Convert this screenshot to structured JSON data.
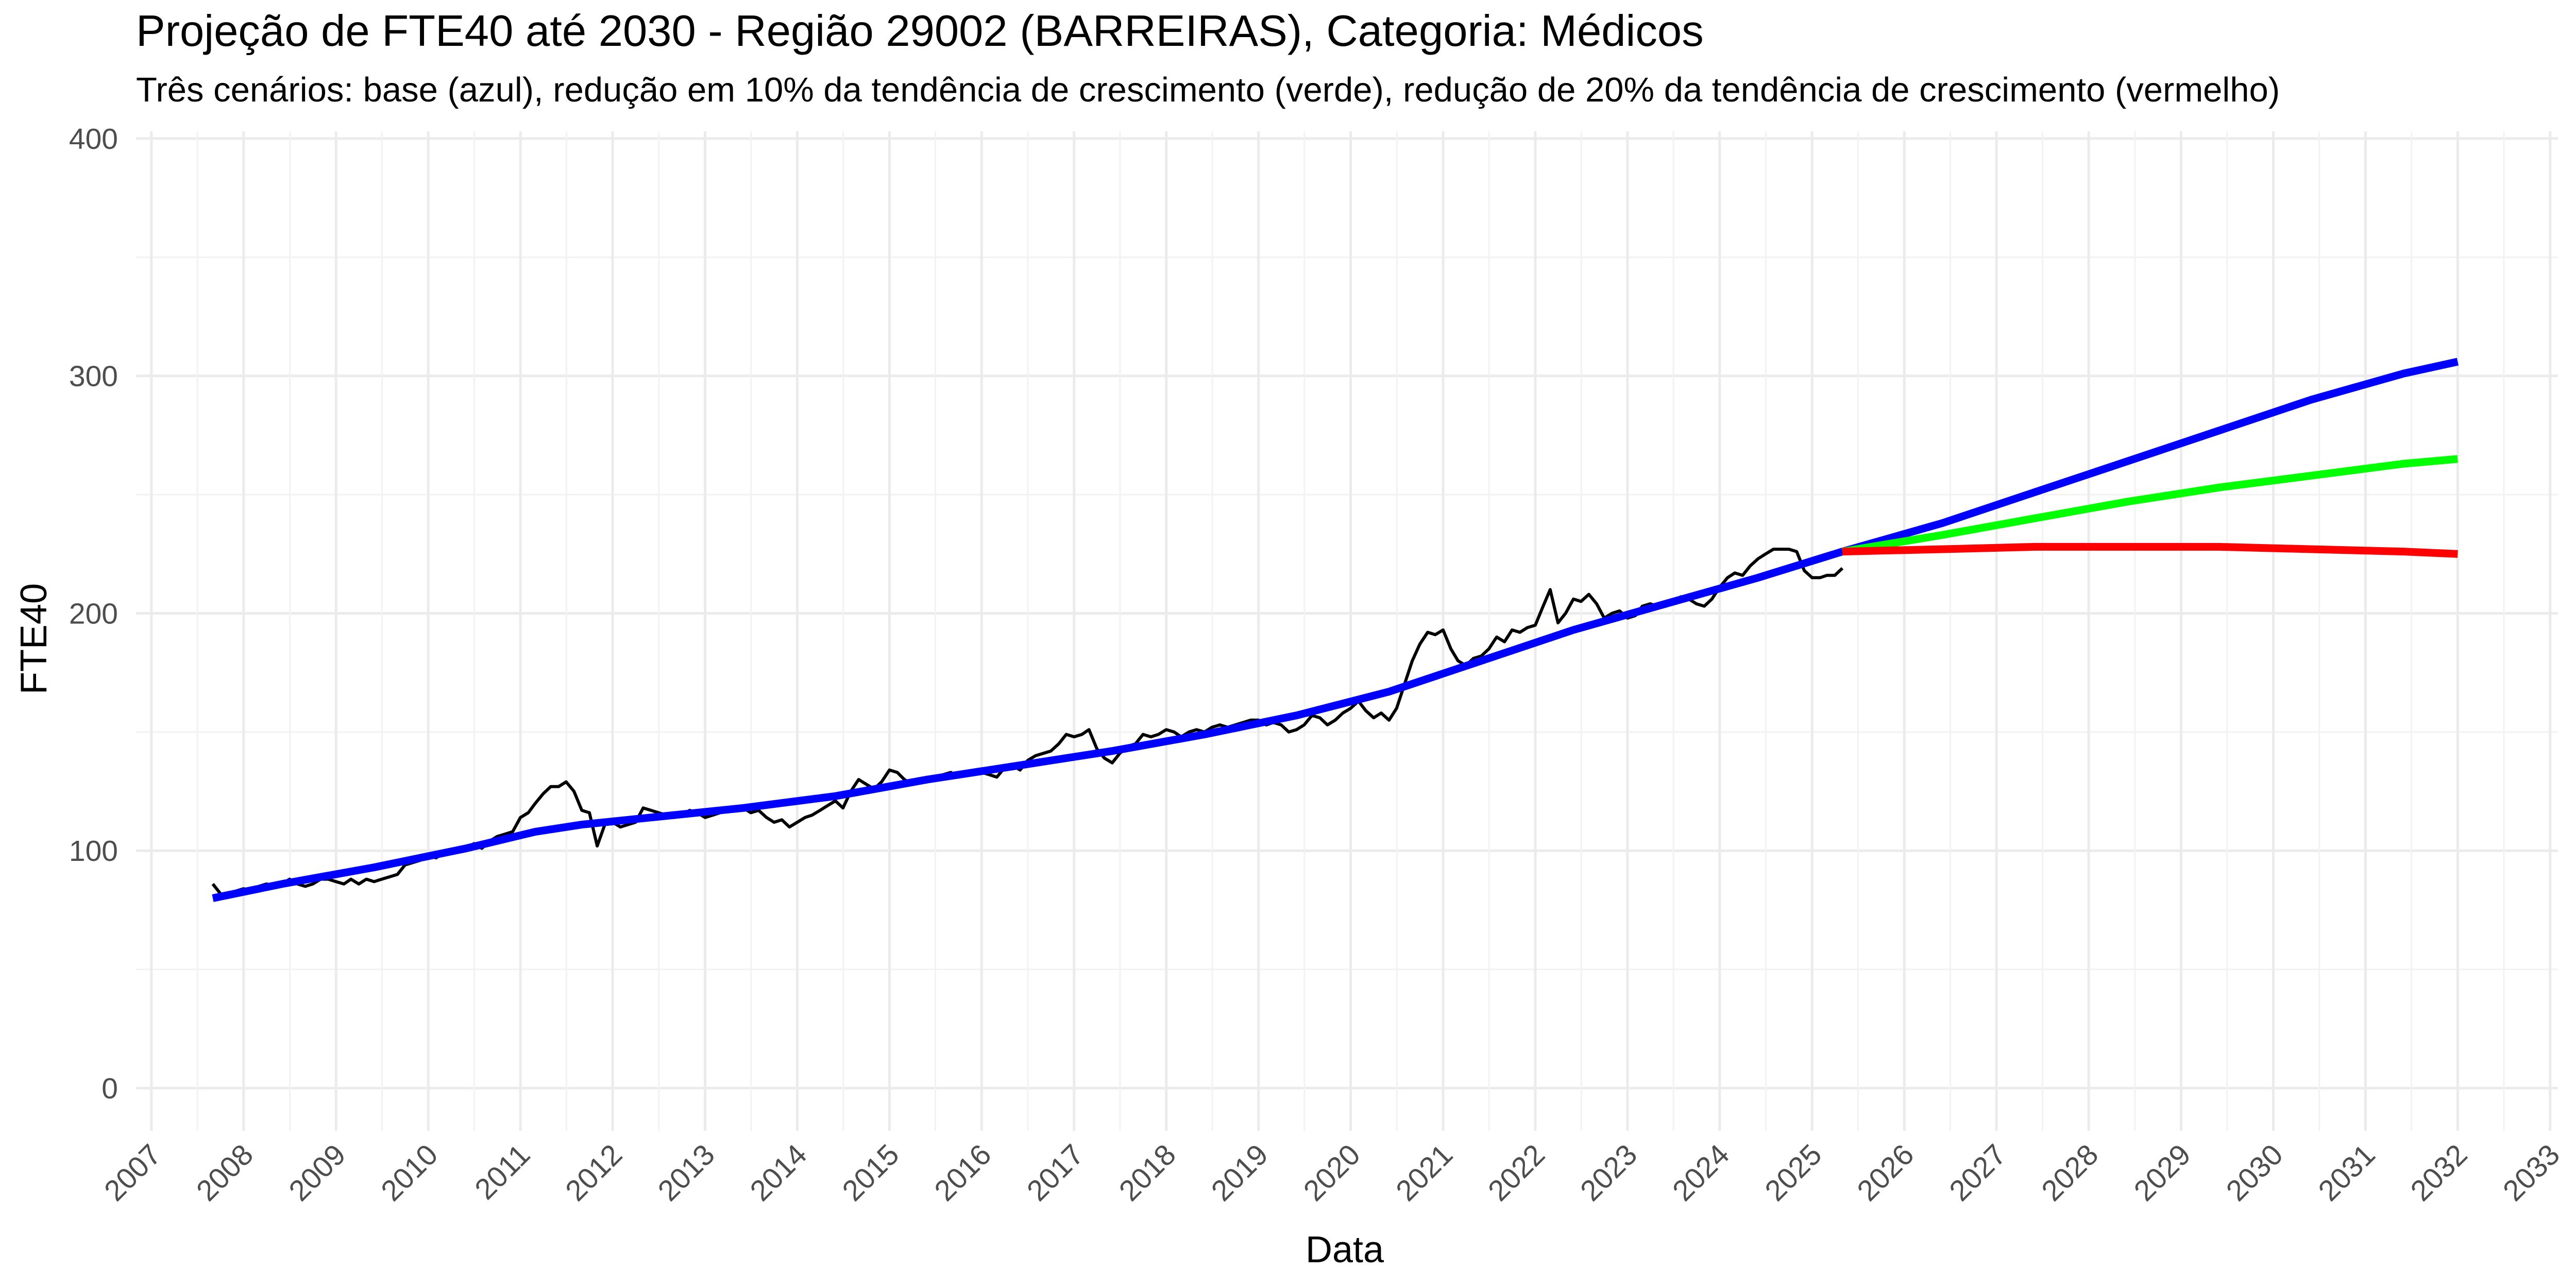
{
  "chart_data": {
    "type": "line",
    "title": "Projeção de FTE40 até 2030 - Região 29002 (BARREIRAS), Categoria: Médicos",
    "subtitle": "Três cenários: base (azul), redução em 10% da tendência de crescimento (verde), redução de 20% da tendência de crescimento (vermelho)",
    "xlabel": "Data",
    "ylabel": "FTE40",
    "x_axis_type": "date",
    "xlim": [
      "2006-11-01",
      "2033-02-01"
    ],
    "ylim": [
      -18,
      403
    ],
    "y_ticks": [
      0,
      100,
      200,
      300,
      400
    ],
    "x_tick_labels": [
      "2007",
      "2008",
      "2009",
      "2010",
      "2011",
      "2012",
      "2013",
      "2014",
      "2015",
      "2016",
      "2017",
      "2018",
      "2019",
      "2020",
      "2021",
      "2022",
      "2023",
      "2024",
      "2025",
      "2026",
      "2027",
      "2028",
      "2029",
      "2030",
      "2031",
      "2032",
      "2033"
    ],
    "grid": true,
    "legend": "none",
    "series": [
      {
        "color": "#000000",
        "width": "thin",
        "points": [
          [
            "2007-09-01",
            86
          ],
          [
            "2007-10-01",
            82
          ],
          [
            "2007-11-01",
            81
          ],
          [
            "2007-12-01",
            83
          ],
          [
            "2008-01-01",
            84
          ],
          [
            "2008-02-01",
            83
          ],
          [
            "2008-03-01",
            85
          ],
          [
            "2008-04-01",
            86
          ],
          [
            "2008-05-01",
            85
          ],
          [
            "2008-06-01",
            86
          ],
          [
            "2008-07-01",
            88
          ],
          [
            "2008-08-01",
            86
          ],
          [
            "2008-09-01",
            85
          ],
          [
            "2008-10-01",
            86
          ],
          [
            "2008-11-01",
            88
          ],
          [
            "2008-12-01",
            88
          ],
          [
            "2009-01-01",
            87
          ],
          [
            "2009-02-01",
            86
          ],
          [
            "2009-03-01",
            88
          ],
          [
            "2009-04-01",
            86
          ],
          [
            "2009-05-01",
            88
          ],
          [
            "2009-06-01",
            87
          ],
          [
            "2009-07-01",
            88
          ],
          [
            "2009-08-01",
            89
          ],
          [
            "2009-09-01",
            90
          ],
          [
            "2009-10-01",
            94
          ],
          [
            "2009-11-01",
            95
          ],
          [
            "2009-12-01",
            96
          ],
          [
            "2010-01-01",
            98
          ],
          [
            "2010-02-01",
            97
          ],
          [
            "2010-03-01",
            99
          ],
          [
            "2010-04-01",
            100
          ],
          [
            "2010-05-01",
            100
          ],
          [
            "2010-06-01",
            101
          ],
          [
            "2010-07-01",
            103
          ],
          [
            "2010-08-01",
            101
          ],
          [
            "2010-09-01",
            104
          ],
          [
            "2010-10-01",
            106
          ],
          [
            "2010-11-01",
            107
          ],
          [
            "2010-12-01",
            108
          ],
          [
            "2011-01-01",
            114
          ],
          [
            "2011-02-01",
            116
          ],
          [
            "2011-03-01",
            120
          ],
          [
            "2011-04-01",
            124
          ],
          [
            "2011-05-01",
            127
          ],
          [
            "2011-06-01",
            127
          ],
          [
            "2011-07-01",
            129
          ],
          [
            "2011-08-01",
            125
          ],
          [
            "2011-09-01",
            117
          ],
          [
            "2011-10-01",
            116
          ],
          [
            "2011-11-01",
            102
          ],
          [
            "2011-12-01",
            111
          ],
          [
            "2012-01-01",
            112
          ],
          [
            "2012-02-01",
            110
          ],
          [
            "2012-03-01",
            111
          ],
          [
            "2012-04-01",
            112
          ],
          [
            "2012-05-01",
            118
          ],
          [
            "2012-06-01",
            117
          ],
          [
            "2012-07-01",
            116
          ],
          [
            "2012-08-01",
            115
          ],
          [
            "2012-09-01",
            114
          ],
          [
            "2012-10-01",
            115
          ],
          [
            "2012-11-01",
            117
          ],
          [
            "2012-12-01",
            116
          ],
          [
            "2013-01-01",
            114
          ],
          [
            "2013-02-01",
            115
          ],
          [
            "2013-03-01",
            116
          ],
          [
            "2013-04-01",
            118
          ],
          [
            "2013-05-01",
            117
          ],
          [
            "2013-06-01",
            118
          ],
          [
            "2013-07-01",
            116
          ],
          [
            "2013-08-01",
            117
          ],
          [
            "2013-09-01",
            114
          ],
          [
            "2013-10-01",
            112
          ],
          [
            "2013-11-01",
            113
          ],
          [
            "2013-12-01",
            110
          ],
          [
            "2014-01-01",
            112
          ],
          [
            "2014-02-01",
            114
          ],
          [
            "2014-03-01",
            115
          ],
          [
            "2014-04-01",
            117
          ],
          [
            "2014-05-01",
            119
          ],
          [
            "2014-06-01",
            121
          ],
          [
            "2014-07-01",
            118
          ],
          [
            "2014-08-01",
            125
          ],
          [
            "2014-09-01",
            130
          ],
          [
            "2014-10-01",
            128
          ],
          [
            "2014-11-01",
            126
          ],
          [
            "2014-12-01",
            129
          ],
          [
            "2015-01-01",
            134
          ],
          [
            "2015-02-01",
            133
          ],
          [
            "2015-03-01",
            130
          ],
          [
            "2015-04-01",
            128
          ],
          [
            "2015-05-01",
            129
          ],
          [
            "2015-06-01",
            130
          ],
          [
            "2015-07-01",
            131
          ],
          [
            "2015-08-01",
            132
          ],
          [
            "2015-09-01",
            133
          ],
          [
            "2015-10-01",
            131
          ],
          [
            "2015-11-01",
            133
          ],
          [
            "2015-12-01",
            132
          ],
          [
            "2016-01-01",
            133
          ],
          [
            "2016-02-01",
            132
          ],
          [
            "2016-03-01",
            131
          ],
          [
            "2016-04-01",
            135
          ],
          [
            "2016-05-01",
            136
          ],
          [
            "2016-06-01",
            134
          ],
          [
            "2016-07-01",
            138
          ],
          [
            "2016-08-01",
            140
          ],
          [
            "2016-09-01",
            141
          ],
          [
            "2016-10-01",
            142
          ],
          [
            "2016-11-01",
            145
          ],
          [
            "2016-12-01",
            149
          ],
          [
            "2017-01-01",
            148
          ],
          [
            "2017-02-01",
            149
          ],
          [
            "2017-03-01",
            151
          ],
          [
            "2017-04-01",
            143
          ],
          [
            "2017-05-01",
            139
          ],
          [
            "2017-06-01",
            137
          ],
          [
            "2017-07-01",
            141
          ],
          [
            "2017-08-01",
            144
          ],
          [
            "2017-09-01",
            145
          ],
          [
            "2017-10-01",
            149
          ],
          [
            "2017-11-01",
            148
          ],
          [
            "2017-12-01",
            149
          ],
          [
            "2018-01-01",
            151
          ],
          [
            "2018-02-01",
            150
          ],
          [
            "2018-03-01",
            148
          ],
          [
            "2018-04-01",
            150
          ],
          [
            "2018-05-01",
            151
          ],
          [
            "2018-06-01",
            150
          ],
          [
            "2018-07-01",
            152
          ],
          [
            "2018-08-01",
            153
          ],
          [
            "2018-09-01",
            152
          ],
          [
            "2018-10-01",
            153
          ],
          [
            "2018-11-01",
            154
          ],
          [
            "2018-12-01",
            155
          ],
          [
            "2019-01-01",
            155
          ],
          [
            "2019-02-01",
            153
          ],
          [
            "2019-03-01",
            154
          ],
          [
            "2019-04-01",
            153
          ],
          [
            "2019-05-01",
            150
          ],
          [
            "2019-06-01",
            151
          ],
          [
            "2019-07-01",
            153
          ],
          [
            "2019-08-01",
            157
          ],
          [
            "2019-09-01",
            156
          ],
          [
            "2019-10-01",
            153
          ],
          [
            "2019-11-01",
            155
          ],
          [
            "2019-12-01",
            158
          ],
          [
            "2020-01-01",
            160
          ],
          [
            "2020-02-01",
            163
          ],
          [
            "2020-03-01",
            159
          ],
          [
            "2020-04-01",
            156
          ],
          [
            "2020-05-01",
            158
          ],
          [
            "2020-06-01",
            155
          ],
          [
            "2020-07-01",
            160
          ],
          [
            "2020-08-01",
            170
          ],
          [
            "2020-09-01",
            180
          ],
          [
            "2020-10-01",
            187
          ],
          [
            "2020-11-01",
            192
          ],
          [
            "2020-12-01",
            191
          ],
          [
            "2021-01-01",
            193
          ],
          [
            "2021-02-01",
            185
          ],
          [
            "2021-03-01",
            180
          ],
          [
            "2021-04-01",
            178
          ],
          [
            "2021-05-01",
            181
          ],
          [
            "2021-06-01",
            182
          ],
          [
            "2021-07-01",
            185
          ],
          [
            "2021-08-01",
            190
          ],
          [
            "2021-09-01",
            188
          ],
          [
            "2021-10-01",
            193
          ],
          [
            "2021-11-01",
            192
          ],
          [
            "2021-12-01",
            194
          ],
          [
            "2022-01-01",
            195
          ],
          [
            "2022-02-01",
            203
          ],
          [
            "2022-03-01",
            210
          ],
          [
            "2022-04-01",
            196
          ],
          [
            "2022-05-01",
            200
          ],
          [
            "2022-06-01",
            206
          ],
          [
            "2022-07-01",
            205
          ],
          [
            "2022-08-01",
            208
          ],
          [
            "2022-09-01",
            204
          ],
          [
            "2022-10-01",
            198
          ],
          [
            "2022-11-01",
            200
          ],
          [
            "2022-12-01",
            201
          ],
          [
            "2023-01-01",
            198
          ],
          [
            "2023-02-01",
            199
          ],
          [
            "2023-03-01",
            203
          ],
          [
            "2023-04-01",
            204
          ],
          [
            "2023-05-01",
            203
          ],
          [
            "2023-06-01",
            203
          ],
          [
            "2023-07-01",
            205
          ],
          [
            "2023-08-01",
            207
          ],
          [
            "2023-09-01",
            206
          ],
          [
            "2023-10-01",
            204
          ],
          [
            "2023-11-01",
            203
          ],
          [
            "2023-12-01",
            206
          ],
          [
            "2024-01-01",
            211
          ],
          [
            "2024-02-01",
            215
          ],
          [
            "2024-03-01",
            217
          ],
          [
            "2024-04-01",
            216
          ],
          [
            "2024-05-01",
            220
          ],
          [
            "2024-06-01",
            223
          ],
          [
            "2024-07-01",
            225
          ],
          [
            "2024-08-01",
            227
          ],
          [
            "2024-09-01",
            227
          ],
          [
            "2024-10-01",
            227
          ],
          [
            "2024-11-01",
            226
          ],
          [
            "2024-12-01",
            218
          ],
          [
            "2025-01-01",
            215
          ],
          [
            "2025-02-01",
            215
          ],
          [
            "2025-03-01",
            216
          ],
          [
            "2025-04-01",
            216
          ],
          [
            "2025-05-01",
            219
          ]
        ]
      },
      {
        "color": "#0000ff",
        "width": "thick",
        "points": [
          [
            "2007-09-01",
            80
          ],
          [
            "2008-06-01",
            86
          ],
          [
            "2009-06-01",
            93
          ],
          [
            "2010-06-01",
            101
          ],
          [
            "2011-03-01",
            108
          ],
          [
            "2011-09-01",
            111
          ],
          [
            "2012-06-01",
            114
          ],
          [
            "2013-06-01",
            118
          ],
          [
            "2014-06-01",
            123
          ],
          [
            "2015-06-01",
            130
          ],
          [
            "2016-06-01",
            136
          ],
          [
            "2017-06-01",
            142
          ],
          [
            "2018-06-01",
            149
          ],
          [
            "2019-06-01",
            157
          ],
          [
            "2020-06-01",
            167
          ],
          [
            "2021-06-01",
            180
          ],
          [
            "2022-06-01",
            193
          ],
          [
            "2023-06-01",
            204
          ],
          [
            "2024-06-01",
            215
          ],
          [
            "2025-05-01",
            226
          ],
          [
            "2026-06-01",
            238
          ],
          [
            "2027-06-01",
            251
          ],
          [
            "2028-06-01",
            264
          ],
          [
            "2029-06-01",
            277
          ],
          [
            "2030-06-01",
            290
          ],
          [
            "2031-06-01",
            301
          ],
          [
            "2032-01-01",
            306
          ]
        ]
      },
      {
        "color": "#00ff00",
        "width": "thick",
        "points": [
          [
            "2025-05-01",
            226
          ],
          [
            "2026-06-01",
            233
          ],
          [
            "2027-06-01",
            240
          ],
          [
            "2028-06-01",
            247
          ],
          [
            "2029-06-01",
            253
          ],
          [
            "2030-06-01",
            258
          ],
          [
            "2031-06-01",
            263
          ],
          [
            "2032-01-01",
            265
          ]
        ]
      },
      {
        "color": "#ff0000",
        "width": "thick",
        "points": [
          [
            "2025-05-01",
            226
          ],
          [
            "2026-06-01",
            227
          ],
          [
            "2027-06-01",
            228
          ],
          [
            "2028-06-01",
            228
          ],
          [
            "2029-06-01",
            228
          ],
          [
            "2030-06-01",
            227
          ],
          [
            "2031-06-01",
            226
          ],
          [
            "2032-01-01",
            225
          ]
        ]
      }
    ]
  }
}
